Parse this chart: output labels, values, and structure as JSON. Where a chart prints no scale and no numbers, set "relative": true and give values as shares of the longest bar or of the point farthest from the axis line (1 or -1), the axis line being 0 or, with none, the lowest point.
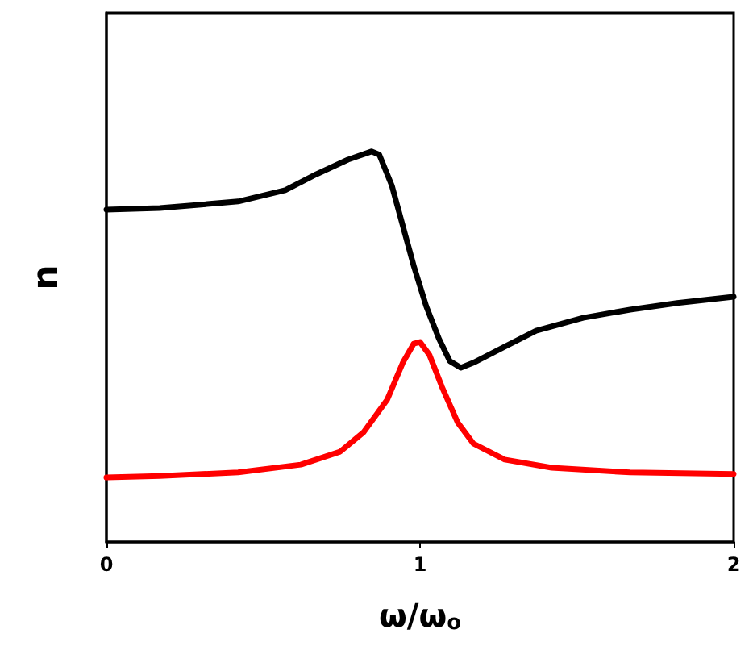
{
  "chart_data": {
    "type": "line",
    "relative": true,
    "xlabel": "ω/ω$_{o}$",
    "ylabel": "n",
    "xlim": [
      0,
      2
    ],
    "xticks": [
      0,
      1,
      2
    ],
    "tick_labels": "x",
    "grid": false,
    "marker": "none",
    "line_style": "solid",
    "series": [
      {
        "color": "#000000",
        "x": [
          0,
          0.17,
          0.42,
          0.57,
          0.67,
          0.77,
          0.845,
          0.87,
          0.91,
          0.945,
          0.98,
          1.02,
          1.06,
          1.095,
          1.13,
          1.17,
          1.27,
          1.37,
          1.52,
          1.67,
          1.82,
          2.0
        ],
        "values": [
          0.851,
          0.855,
          0.872,
          0.901,
          0.942,
          0.979,
          1,
          0.992,
          0.913,
          0.81,
          0.707,
          0.603,
          0.521,
          0.463,
          0.446,
          0.459,
          0.5,
          0.541,
          0.574,
          0.595,
          0.612,
          0.628
        ]
      },
      {
        "color": "#ff0000",
        "x": [
          0,
          0.17,
          0.42,
          0.62,
          0.745,
          0.82,
          0.895,
          0.945,
          0.98,
          1.0,
          1.03,
          1.07,
          1.12,
          1.17,
          1.27,
          1.42,
          1.67,
          2.0
        ],
        "values": [
          0.165,
          0.169,
          0.178,
          0.198,
          0.231,
          0.281,
          0.364,
          0.459,
          0.508,
          0.512,
          0.479,
          0.397,
          0.306,
          0.252,
          0.211,
          0.19,
          0.178,
          0.174
        ]
      }
    ]
  }
}
